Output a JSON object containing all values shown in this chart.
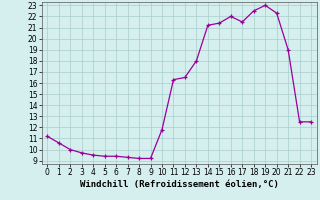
{
  "x": [
    0,
    1,
    2,
    3,
    4,
    5,
    6,
    7,
    8,
    9,
    10,
    11,
    12,
    13,
    14,
    15,
    16,
    17,
    18,
    19,
    20,
    21,
    22,
    23
  ],
  "y": [
    11.2,
    10.6,
    10.0,
    9.7,
    9.5,
    9.4,
    9.4,
    9.3,
    9.2,
    9.2,
    11.8,
    16.3,
    16.5,
    18.0,
    21.2,
    21.4,
    22.0,
    21.5,
    22.5,
    23.0,
    22.3,
    19.0,
    12.5,
    12.5
  ],
  "xlabel": "Windchill (Refroidissement éolien,°C)",
  "ylim_min": 9,
  "ylim_max": 23,
  "xlim_min": -0.5,
  "xlim_max": 23.5,
  "yticks": [
    9,
    10,
    11,
    12,
    13,
    14,
    15,
    16,
    17,
    18,
    19,
    20,
    21,
    22,
    23
  ],
  "xticks": [
    0,
    1,
    2,
    3,
    4,
    5,
    6,
    7,
    8,
    9,
    10,
    11,
    12,
    13,
    14,
    15,
    16,
    17,
    18,
    19,
    20,
    21,
    22,
    23
  ],
  "line_color": "#990099",
  "marker": "+",
  "bg_color": "#d5efef",
  "grid_color": "#aacccc",
  "xlabel_fontsize": 6.5,
  "tick_fontsize": 5.5,
  "line_width": 0.9,
  "marker_size": 3.5,
  "marker_edge_width": 0.9
}
